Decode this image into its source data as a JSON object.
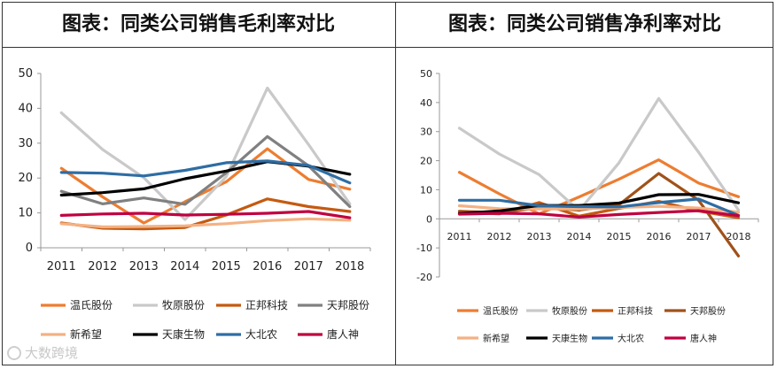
{
  "chart_data": [
    {
      "type": "line",
      "title": "图表：同类公司销售毛利率对比",
      "categories": [
        "2011",
        "2012",
        "2013",
        "2014",
        "2015",
        "2016",
        "2017",
        "2018"
      ],
      "ylim": [
        0,
        50
      ],
      "yticks": [
        0,
        10,
        20,
        30,
        40,
        50
      ],
      "ytick_labels": [
        "0",
        "10",
        "20",
        "30",
        "40",
        "50"
      ],
      "grid": false,
      "legend_position": "bottom",
      "series": [
        {
          "name": "温氏股份",
          "color": "#ED7D31",
          "values": [
            22.8,
            14.6,
            7.1,
            13.2,
            18.9,
            28.4,
            19.6,
            16.8
          ]
        },
        {
          "name": "牧原股份",
          "color": "#C9C9C9",
          "values": [
            38.7,
            28.2,
            20.1,
            8.1,
            20.4,
            45.8,
            29.6,
            12.6
          ]
        },
        {
          "name": "正邦科技",
          "color": "#C55A11",
          "values": [
            7.1,
            5.6,
            5.4,
            5.8,
            9.4,
            14.0,
            11.8,
            10.4
          ]
        },
        {
          "name": "天邦股份",
          "color": "#808080",
          "values": [
            16.2,
            12.6,
            14.3,
            12.5,
            21.5,
            31.9,
            23.5,
            11.8
          ]
        },
        {
          "name": "新希望",
          "color": "#F4B183",
          "values": [
            6.9,
            6.0,
            6.1,
            6.3,
            6.9,
            7.8,
            8.3,
            7.9
          ]
        },
        {
          "name": "天康生物",
          "color": "#000000",
          "values": [
            15.1,
            15.8,
            16.9,
            19.8,
            22.0,
            24.7,
            23.4,
            21.1
          ]
        },
        {
          "name": "大北农",
          "color": "#2E6DA4",
          "values": [
            21.6,
            21.4,
            20.6,
            22.2,
            24.4,
            24.9,
            23.6,
            18.6
          ]
        },
        {
          "name": "唐人神",
          "color": "#C00040",
          "values": [
            9.3,
            9.7,
            9.9,
            9.4,
            9.6,
            9.9,
            10.4,
            8.6
          ]
        }
      ]
    },
    {
      "type": "line",
      "title": "图表：同类公司销售净利率对比",
      "categories": [
        "2011",
        "2012",
        "2013",
        "2014",
        "2015",
        "2016",
        "2017",
        "2018"
      ],
      "ylim": [
        -20,
        50
      ],
      "yticks": [
        -20,
        -10,
        0,
        10,
        20,
        30,
        40,
        50
      ],
      "ytick_labels": [
        "-20",
        "-10",
        "0",
        "10",
        "20",
        "30",
        "40",
        "50"
      ],
      "grid": false,
      "legend_position": "bottom",
      "series": [
        {
          "name": "温氏股份",
          "color": "#ED7D31",
          "values": [
            16.0,
            8.6,
            1.7,
            7.5,
            13.6,
            20.3,
            12.3,
            7.6
          ]
        },
        {
          "name": "牧原股份",
          "color": "#C9C9C9",
          "values": [
            31.2,
            22.3,
            15.2,
            2.8,
            19.2,
            41.4,
            22.9,
            3.0
          ]
        },
        {
          "name": "正邦科技",
          "color": "#C55A11",
          "values": [
            2.2,
            1.7,
            5.6,
            0.9,
            3.6,
            6.0,
            2.7,
            0.4
          ]
        },
        {
          "name": "天邦股份",
          "color": "#A0521A",
          "values": [
            2.6,
            2.1,
            3.8,
            3.0,
            4.8,
            15.6,
            6.4,
            -12.8
          ]
        },
        {
          "name": "新希望",
          "color": "#F4B183",
          "values": [
            4.5,
            3.5,
            3.4,
            3.4,
            3.9,
            4.3,
            3.7,
            2.3
          ]
        },
        {
          "name": "天康生物",
          "color": "#000000",
          "values": [
            1.8,
            2.7,
            4.6,
            4.6,
            5.4,
            8.3,
            8.4,
            5.5
          ]
        },
        {
          "name": "大北农",
          "color": "#2E6DA4",
          "values": [
            6.4,
            6.4,
            4.5,
            4.2,
            4.1,
            5.6,
            6.8,
            1.2
          ]
        },
        {
          "name": "唐人神",
          "color": "#C00040",
          "values": [
            1.6,
            1.9,
            1.7,
            0.6,
            1.5,
            2.2,
            2.8,
            1.1
          ]
        }
      ]
    }
  ],
  "watermark": "大数跨境"
}
